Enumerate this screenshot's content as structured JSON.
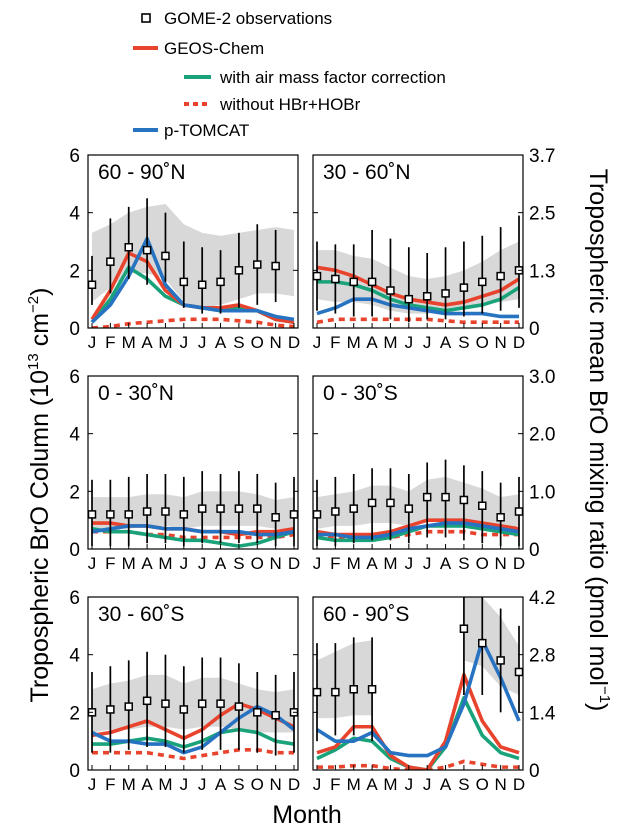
{
  "colors": {
    "observations": "#000000",
    "geos_chem": "#e8432d",
    "amf_corr": "#1aa37a",
    "no_hbr": "#e8432d",
    "ptomcat": "#2773c2",
    "range_band": "#d8d8d8"
  },
  "legend": {
    "observations": "GOME-2 observations",
    "geos_chem": "GEOS-Chem",
    "amf_corr": "with air mass factor correction",
    "no_hbr": "without HBr+HOBr",
    "ptomcat": "p-TOMCAT"
  },
  "figure": {
    "ylabel_left_prefix": "Tropospheric BrO Column (10",
    "ylabel_left_exp": "13",
    "ylabel_left_mid": " cm",
    "ylabel_left_exp2": "−2",
    "ylabel_left_suffix": ")",
    "ylabel_right_main": "Tropospheric mean BrO mixing ratio  (pmol mol",
    "ylabel_right_exp": "−1",
    "ylabel_right_suffix": ")",
    "xlabel": "Month"
  },
  "chart_data": [
    {
      "type": "line",
      "title": "60 - 90˚N",
      "x": [
        "J",
        "F",
        "M",
        "A",
        "M",
        "J",
        "J",
        "A",
        "S",
        "O",
        "N",
        "D"
      ],
      "ylim": [
        0,
        6
      ],
      "yticks_left": [
        "0",
        "2",
        "4",
        "6"
      ],
      "yticks_right": [
        "0",
        "1.3",
        "2.5",
        "3.7"
      ],
      "series": [
        {
          "key": "observations",
          "values": [
            1.5,
            2.3,
            2.8,
            2.7,
            2.5,
            1.6,
            1.5,
            1.6,
            2.0,
            2.2,
            2.15,
            null
          ],
          "err_lo": [
            0.8,
            1.2,
            1.7,
            1.5,
            1.6,
            0.7,
            0.5,
            0.5,
            0.7,
            0.8,
            0.9,
            null
          ],
          "err_hi": [
            2.5,
            3.8,
            4.2,
            4.5,
            4.0,
            3.0,
            2.8,
            2.7,
            3.3,
            3.6,
            3.4,
            null
          ]
        },
        {
          "key": "band_lo",
          "values": [
            0.9,
            1.4,
            1.9,
            1.9,
            1.7,
            0.9,
            0.7,
            0.8,
            1.0,
            1.2,
            1.2,
            1.1
          ]
        },
        {
          "key": "band_hi",
          "values": [
            3.3,
            3.6,
            4.0,
            4.2,
            4.3,
            3.6,
            3.3,
            3.2,
            3.3,
            3.4,
            3.5,
            3.4
          ]
        },
        {
          "key": "geos_chem",
          "values": [
            0.3,
            1.3,
            2.6,
            2.3,
            1.3,
            0.8,
            0.7,
            0.7,
            0.8,
            0.6,
            0.3,
            0.2
          ]
        },
        {
          "key": "amf_corr",
          "values": [
            0.2,
            1.0,
            2.1,
            1.7,
            1.1,
            0.8,
            0.7,
            0.6,
            0.7,
            0.6,
            0.3,
            0.2
          ]
        },
        {
          "key": "no_hbr",
          "values": [
            0.0,
            0.05,
            0.15,
            0.2,
            0.25,
            0.3,
            0.3,
            0.3,
            0.25,
            0.2,
            0.1,
            0.05
          ]
        },
        {
          "key": "ptomcat",
          "values": [
            0.2,
            0.8,
            1.8,
            3.1,
            1.5,
            0.8,
            0.7,
            0.6,
            0.6,
            0.6,
            0.4,
            0.3
          ]
        }
      ]
    },
    {
      "type": "line",
      "title": "30 - 60˚N",
      "x": [
        "J",
        "F",
        "M",
        "A",
        "M",
        "J",
        "J",
        "A",
        "S",
        "O",
        "N",
        "D"
      ],
      "ylim": [
        0,
        6
      ],
      "yticks_left": [
        "0",
        "2",
        "4",
        "6"
      ],
      "yticks_right": [
        "0",
        "1.3",
        "2.5",
        "3.7"
      ],
      "series": [
        {
          "key": "observations",
          "values": [
            1.8,
            1.7,
            1.6,
            1.6,
            1.3,
            1.0,
            1.1,
            1.2,
            1.4,
            1.6,
            1.8,
            2.0
          ],
          "err_lo": [
            0.6,
            0.5,
            0.4,
            0.4,
            0.3,
            0.2,
            0.3,
            0.3,
            0.4,
            0.5,
            0.6,
            0.7
          ],
          "err_hi": [
            3.0,
            2.9,
            2.9,
            3.4,
            3.1,
            2.8,
            2.6,
            2.8,
            3.0,
            3.2,
            3.5,
            3.9
          ]
        },
        {
          "key": "band_lo",
          "values": [
            1.0,
            0.9,
            0.9,
            0.8,
            0.6,
            0.5,
            0.5,
            0.6,
            0.7,
            0.8,
            0.9,
            1.0
          ]
        },
        {
          "key": "band_hi",
          "values": [
            2.7,
            2.7,
            2.5,
            2.4,
            2.1,
            1.8,
            1.7,
            1.8,
            2.0,
            2.3,
            2.7,
            3.0
          ]
        },
        {
          "key": "geos_chem",
          "values": [
            2.1,
            2.0,
            1.8,
            1.5,
            1.2,
            1.0,
            0.9,
            0.8,
            0.9,
            1.1,
            1.3,
            1.7
          ]
        },
        {
          "key": "amf_corr",
          "values": [
            1.6,
            1.6,
            1.5,
            1.3,
            1.0,
            0.8,
            0.7,
            0.6,
            0.7,
            0.8,
            1.0,
            1.4
          ]
        },
        {
          "key": "no_hbr",
          "values": [
            0.2,
            0.3,
            0.3,
            0.3,
            0.3,
            0.3,
            0.3,
            0.25,
            0.2,
            0.2,
            0.2,
            0.2
          ]
        },
        {
          "key": "ptomcat",
          "values": [
            0.5,
            0.7,
            1.0,
            1.0,
            0.8,
            0.7,
            0.6,
            0.5,
            0.5,
            0.5,
            0.4,
            0.4
          ]
        }
      ]
    },
    {
      "type": "line",
      "title": "0 - 30˚N",
      "x": [
        "J",
        "F",
        "M",
        "A",
        "M",
        "J",
        "J",
        "A",
        "S",
        "O",
        "N",
        "D"
      ],
      "ylim": [
        0,
        6
      ],
      "yticks_left": [
        "0",
        "2",
        "4",
        "6"
      ],
      "yticks_right": [
        "0",
        "1.0",
        "2.0",
        "3.0"
      ],
      "series": [
        {
          "key": "observations",
          "values": [
            1.2,
            1.2,
            1.2,
            1.3,
            1.3,
            1.2,
            1.4,
            1.4,
            1.4,
            1.4,
            1.1,
            1.2
          ],
          "err_lo": [
            0.1,
            0.1,
            0.1,
            0.2,
            0.2,
            0.1,
            0.2,
            0.2,
            0.2,
            0.2,
            0.1,
            0.1
          ],
          "err_hi": [
            2.4,
            2.4,
            2.5,
            2.6,
            2.6,
            2.5,
            2.7,
            2.6,
            2.7,
            2.6,
            2.3,
            2.5
          ]
        },
        {
          "key": "band_lo",
          "values": [
            0.7,
            0.7,
            0.7,
            0.8,
            0.8,
            0.7,
            0.8,
            0.8,
            0.8,
            0.8,
            0.7,
            0.7
          ]
        },
        {
          "key": "band_hi",
          "values": [
            1.8,
            1.8,
            1.8,
            1.9,
            1.9,
            1.8,
            2.0,
            2.0,
            2.0,
            1.9,
            1.7,
            1.8
          ]
        },
        {
          "key": "geos_chem",
          "values": [
            0.9,
            0.9,
            0.8,
            0.8,
            0.7,
            0.7,
            0.6,
            0.6,
            0.5,
            0.6,
            0.6,
            0.7
          ]
        },
        {
          "key": "amf_corr",
          "values": [
            0.7,
            0.6,
            0.6,
            0.5,
            0.4,
            0.3,
            0.3,
            0.2,
            0.1,
            0.2,
            0.4,
            0.6
          ]
        },
        {
          "key": "no_hbr",
          "values": [
            0.6,
            0.6,
            0.6,
            0.5,
            0.5,
            0.4,
            0.4,
            0.4,
            0.4,
            0.4,
            0.4,
            0.5
          ]
        },
        {
          "key": "ptomcat",
          "values": [
            0.6,
            0.7,
            0.8,
            0.8,
            0.7,
            0.7,
            0.6,
            0.6,
            0.6,
            0.5,
            0.5,
            0.6
          ]
        }
      ]
    },
    {
      "type": "line",
      "title": "0 - 30˚S",
      "x": [
        "J",
        "F",
        "M",
        "A",
        "M",
        "J",
        "J",
        "A",
        "S",
        "O",
        "N",
        "D"
      ],
      "ylim": [
        0,
        6
      ],
      "yticks_left": [
        "0",
        "2",
        "4",
        "6"
      ],
      "yticks_right": [
        "0",
        "1.0",
        "2.0",
        "3.0"
      ],
      "series": [
        {
          "key": "observations",
          "values": [
            1.2,
            1.3,
            1.4,
            1.6,
            1.6,
            1.4,
            1.8,
            1.8,
            1.7,
            1.5,
            1.1,
            1.3
          ],
          "err_lo": [
            0.1,
            0.1,
            0.2,
            0.3,
            0.3,
            0.2,
            0.4,
            0.4,
            0.3,
            0.2,
            0.1,
            0.1
          ],
          "err_hi": [
            2.4,
            2.5,
            2.6,
            2.8,
            2.8,
            2.6,
            3.0,
            3.1,
            2.9,
            2.7,
            2.3,
            2.5
          ]
        },
        {
          "key": "band_lo",
          "values": [
            0.7,
            0.8,
            0.8,
            0.9,
            0.9,
            0.8,
            1.0,
            1.0,
            1.0,
            0.9,
            0.7,
            0.8
          ]
        },
        {
          "key": "band_hi",
          "values": [
            1.8,
            1.9,
            2.0,
            2.2,
            2.2,
            2.0,
            2.4,
            2.5,
            2.3,
            2.1,
            1.8,
            1.9
          ]
        },
        {
          "key": "geos_chem",
          "values": [
            0.6,
            0.5,
            0.5,
            0.5,
            0.6,
            0.8,
            1.0,
            1.0,
            1.0,
            0.9,
            0.8,
            0.7
          ]
        },
        {
          "key": "amf_corr",
          "values": [
            0.4,
            0.3,
            0.3,
            0.3,
            0.4,
            0.6,
            0.8,
            0.8,
            0.8,
            0.7,
            0.6,
            0.5
          ]
        },
        {
          "key": "no_hbr",
          "values": [
            0.5,
            0.4,
            0.4,
            0.4,
            0.4,
            0.5,
            0.6,
            0.6,
            0.6,
            0.5,
            0.5,
            0.5
          ]
        },
        {
          "key": "ptomcat",
          "values": [
            0.5,
            0.5,
            0.4,
            0.4,
            0.5,
            0.7,
            0.8,
            0.9,
            0.9,
            0.8,
            0.7,
            0.6
          ]
        }
      ]
    },
    {
      "type": "line",
      "title": "30 - 60˚S",
      "x": [
        "J",
        "F",
        "M",
        "A",
        "M",
        "J",
        "J",
        "A",
        "S",
        "O",
        "N",
        "D"
      ],
      "ylim": [
        0,
        6
      ],
      "yticks_left": [
        "0",
        "2",
        "4",
        "6"
      ],
      "yticks_right": [
        "0",
        "1.4",
        "2.8",
        "4.2"
      ],
      "series": [
        {
          "key": "observations",
          "values": [
            2.0,
            2.1,
            2.2,
            2.4,
            2.3,
            2.1,
            2.3,
            2.3,
            2.2,
            2.0,
            1.9,
            2.0
          ],
          "err_lo": [
            0.6,
            0.6,
            0.7,
            0.8,
            0.8,
            0.6,
            0.7,
            0.7,
            0.7,
            0.6,
            0.5,
            0.6
          ],
          "err_hi": [
            3.4,
            3.6,
            3.8,
            4.1,
            4.0,
            3.6,
            3.9,
            3.9,
            3.7,
            3.4,
            3.3,
            3.4
          ]
        },
        {
          "key": "band_lo",
          "values": [
            1.3,
            1.4,
            1.4,
            1.5,
            1.5,
            1.4,
            1.5,
            1.5,
            1.4,
            1.3,
            1.3,
            1.3
          ]
        },
        {
          "key": "band_hi",
          "values": [
            2.8,
            3.0,
            3.1,
            3.3,
            3.3,
            3.0,
            3.2,
            3.2,
            3.0,
            2.8,
            2.7,
            2.8
          ]
        },
        {
          "key": "geos_chem",
          "values": [
            1.2,
            1.3,
            1.5,
            1.7,
            1.4,
            1.1,
            1.4,
            1.9,
            2.3,
            2.1,
            1.8,
            1.5
          ]
        },
        {
          "key": "amf_corr",
          "values": [
            0.9,
            0.9,
            1.0,
            1.1,
            1.0,
            0.8,
            1.0,
            1.3,
            1.4,
            1.3,
            1.0,
            0.9
          ]
        },
        {
          "key": "no_hbr",
          "values": [
            0.6,
            0.6,
            0.6,
            0.6,
            0.5,
            0.4,
            0.5,
            0.6,
            0.7,
            0.7,
            0.6,
            0.6
          ]
        },
        {
          "key": "ptomcat",
          "values": [
            1.3,
            1.0,
            1.0,
            0.9,
            0.9,
            0.6,
            0.8,
            1.3,
            1.8,
            2.2,
            1.9,
            1.4
          ]
        }
      ]
    },
    {
      "type": "line",
      "title": "60 - 90˚S",
      "x": [
        "J",
        "F",
        "M",
        "A",
        "M",
        "J",
        "J",
        "A",
        "S",
        "O",
        "N",
        "D"
      ],
      "ylim": [
        0,
        6
      ],
      "yticks_left": [
        "0",
        "2",
        "4",
        "6"
      ],
      "yticks_right": [
        "0",
        "1.4",
        "2.8",
        "4.2"
      ],
      "series": [
        {
          "key": "observations",
          "values": [
            2.7,
            2.7,
            2.8,
            2.8,
            null,
            null,
            null,
            null,
            4.9,
            4.4,
            3.8,
            3.4
          ],
          "err_lo": [
            1.0,
            1.2,
            1.2,
            1.0,
            null,
            null,
            null,
            null,
            2.6,
            2.6,
            2.0,
            2.0
          ],
          "err_hi": [
            4.4,
            4.4,
            4.6,
            4.6,
            null,
            null,
            null,
            null,
            6.0,
            6.0,
            5.6,
            5.0
          ]
        },
        {
          "key": "band_lo",
          "values": [
            1.8,
            1.8,
            1.9,
            1.9,
            null,
            null,
            null,
            null,
            3.8,
            3.6,
            2.9,
            2.6
          ]
        },
        {
          "key": "band_hi",
          "values": [
            3.8,
            4.1,
            4.4,
            4.5,
            null,
            null,
            null,
            null,
            6.0,
            6.0,
            5.3,
            4.3
          ]
        },
        {
          "key": "geos_chem",
          "values": [
            0.6,
            0.8,
            1.5,
            1.5,
            0.5,
            0.1,
            0.0,
            1.0,
            3.3,
            1.7,
            0.8,
            0.6
          ]
        },
        {
          "key": "amf_corr",
          "values": [
            0.4,
            0.7,
            1.1,
            1.0,
            0.4,
            0.1,
            0.0,
            0.8,
            2.5,
            1.2,
            0.6,
            0.4
          ]
        },
        {
          "key": "no_hbr",
          "values": [
            0.1,
            0.1,
            0.15,
            0.15,
            0.05,
            0.0,
            0.0,
            0.1,
            0.3,
            0.2,
            0.1,
            0.1
          ]
        },
        {
          "key": "ptomcat",
          "values": [
            1.4,
            1.0,
            1.0,
            1.3,
            0.6,
            0.5,
            0.5,
            0.8,
            2.3,
            4.5,
            3.2,
            1.7
          ]
        }
      ]
    }
  ]
}
